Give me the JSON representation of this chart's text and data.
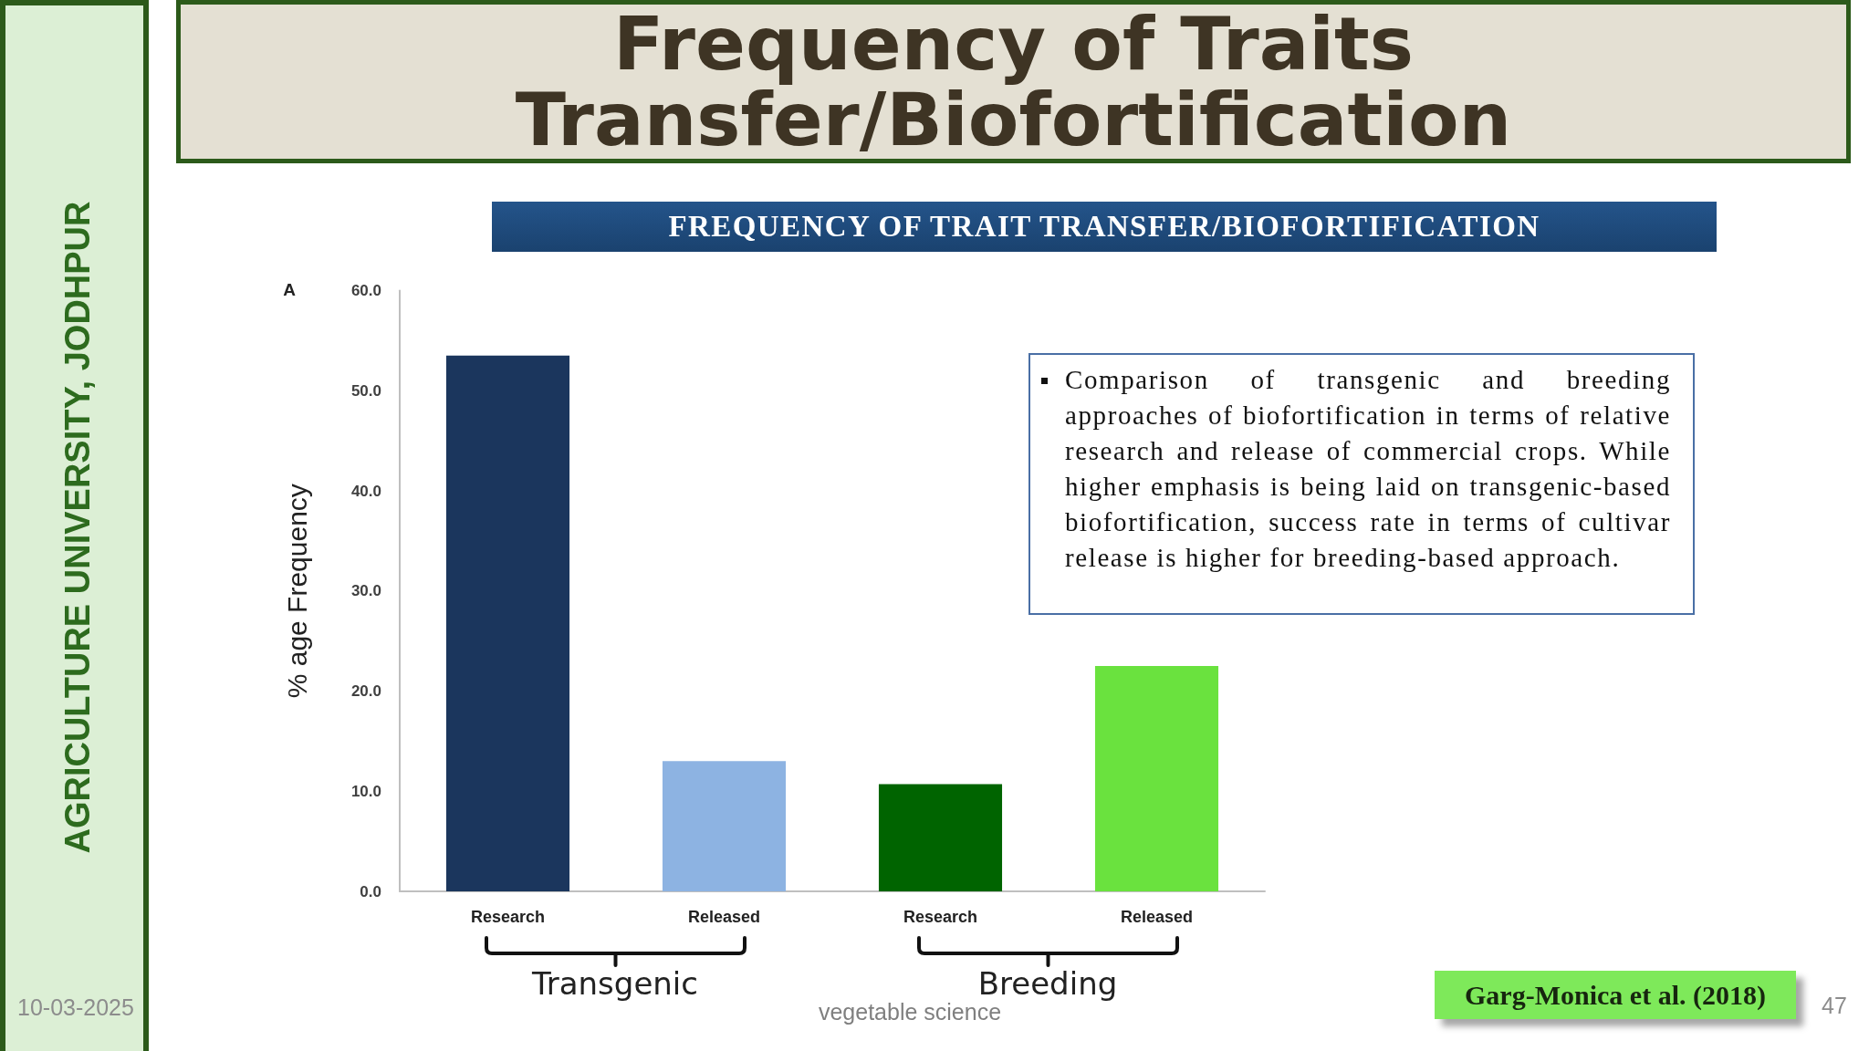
{
  "chart_data": {
    "type": "bar",
    "title": "Frequency of Traits Transfer/Biofortification",
    "subtitle": "FREQUENCY OF TRAIT TRANSFER/BIOFORTIFICATION",
    "ylabel": "% age Frequency",
    "categories": [
      "Research",
      "Released",
      "Research",
      "Released"
    ],
    "values": [
      53.5,
      13.0,
      10.7,
      22.5
    ],
    "colors": [
      "#1b365d",
      "#8db3e2",
      "#006400",
      "#6ae23e"
    ],
    "ylim": [
      0,
      60
    ],
    "yticks": [
      {
        "value": 0,
        "label": "0.0"
      },
      {
        "value": 10,
        "label": "10.0"
      },
      {
        "value": 20,
        "label": "20.0"
      },
      {
        "value": 30,
        "label": "30.0"
      },
      {
        "value": 40,
        "label": "40.0"
      },
      {
        "value": 50,
        "label": "50.0"
      },
      {
        "value": 60,
        "label": "60.0"
      }
    ],
    "annotations": [
      "A",
      "Transgenic",
      "Breeding",
      "Comparison of transgenic and breeding approaches of biofortification in terms of relative research and release of commercial crops. While higher emphasis is being laid on transgenic-based biofortification, success rate in terms of cultivar release is higher for breeding-based approach.",
      "Garg-Monica et al. (2018)",
      "vegetable science",
      "10-03-2025",
      "47",
      "AGRICULTURE UNIVERSITY, JODHPUR"
    ]
  }
}
